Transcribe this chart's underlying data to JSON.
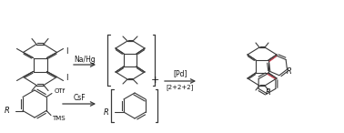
{
  "background": "#ffffff",
  "fig_w": 3.78,
  "fig_h": 1.46,
  "dpi": 100,
  "colors": {
    "line": "#3a3a3a",
    "red": "#d04050",
    "text": "#111111"
  },
  "text": {
    "na_hg": "Na/Hg",
    "csf": "CsF",
    "pd": "[Pd]",
    "cyclo": "[2+2+2]",
    "I": "I",
    "OTf": "OTf",
    "TMS": "TMS",
    "R": "R",
    "plus": "+"
  }
}
